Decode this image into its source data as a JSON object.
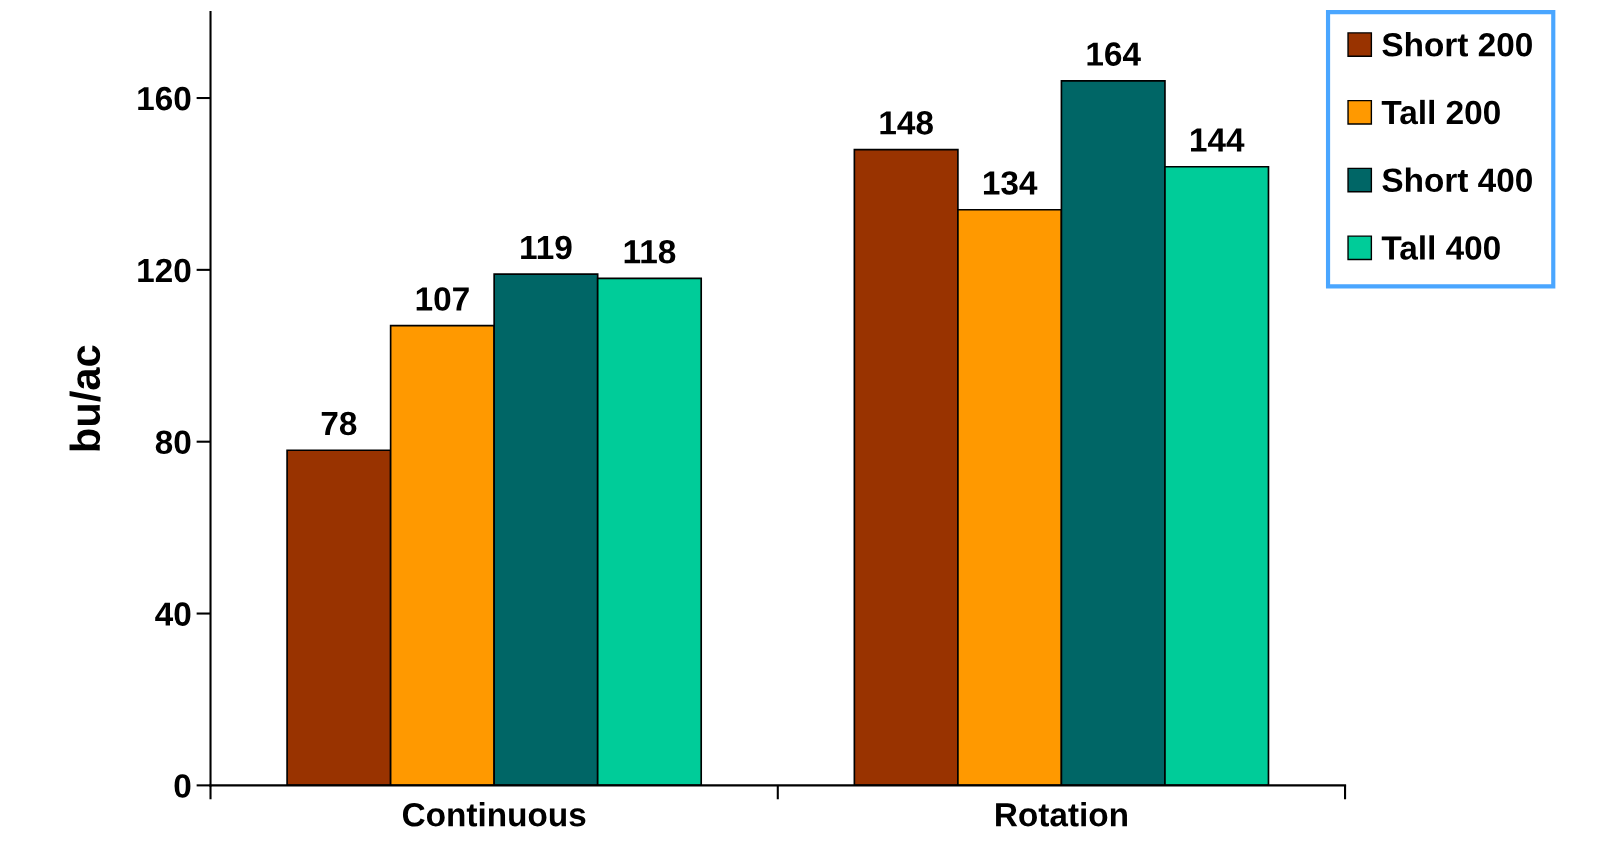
{
  "chart_data": {
    "type": "bar",
    "ylabel": "bu/ac",
    "categories": [
      "Continuous",
      "Rotation"
    ],
    "series": [
      {
        "name": "Short 200",
        "color": "#993300",
        "values": [
          78,
          148
        ]
      },
      {
        "name": "Tall 200",
        "color": "#ff9900",
        "values": [
          107,
          134
        ]
      },
      {
        "name": "Short 400",
        "color": "#006666",
        "values": [
          119,
          164
        ]
      },
      {
        "name": "Tall 400",
        "color": "#00cc99",
        "values": [
          118,
          144
        ]
      }
    ],
    "ylim": [
      0,
      180
    ],
    "yticks": [
      0,
      40,
      80,
      120,
      160
    ],
    "data_labels": true,
    "grid": false,
    "legend": "top right"
  }
}
